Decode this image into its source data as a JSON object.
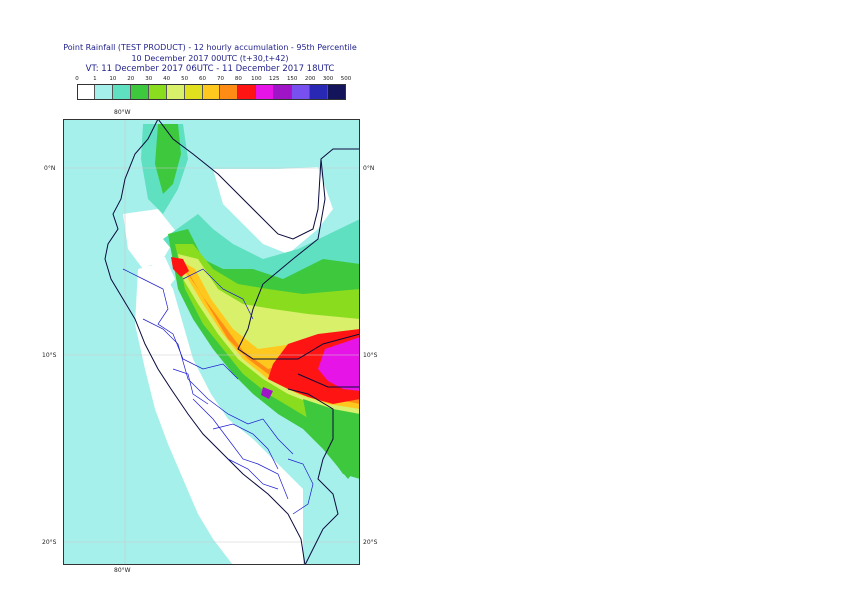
{
  "header": {
    "line1": "Point Rainfall (TEST PRODUCT) - 12 hourly accumulation - 95th Percentile",
    "line2": "10 December 2017 00UTC (t+30,t+42)",
    "line3": "VT: 11 December 2017 06UTC - 11 December 2017 18UTC"
  },
  "legend": {
    "ticks": [
      "0",
      "1",
      "10",
      "20",
      "30",
      "40",
      "50",
      "60",
      "70",
      "80",
      "100",
      "125",
      "150",
      "200",
      "300",
      "500"
    ],
    "colors": [
      "#ffffff",
      "#a6f0ec",
      "#5fe0c0",
      "#3ec83e",
      "#8adc1e",
      "#d8f06a",
      "#e0e01e",
      "#ffc81e",
      "#ff8c14",
      "#ff1414",
      "#e614e6",
      "#a014c8",
      "#7850f0",
      "#2828b4",
      "#14145a"
    ]
  },
  "map_labels": {
    "top_lon": "80°W",
    "bottom_lon": "80°W",
    "lat_0_left": "0°N",
    "lat_0_right": "0°N",
    "lat_10_left": "10°S",
    "lat_10_right": "10°S",
    "lat_20_left": "20°S",
    "lat_20_right": "20°S"
  },
  "map": {
    "region": "Peru",
    "ocean_color": "#a6f0ec",
    "land_color": "#ffffff",
    "grid": true
  }
}
